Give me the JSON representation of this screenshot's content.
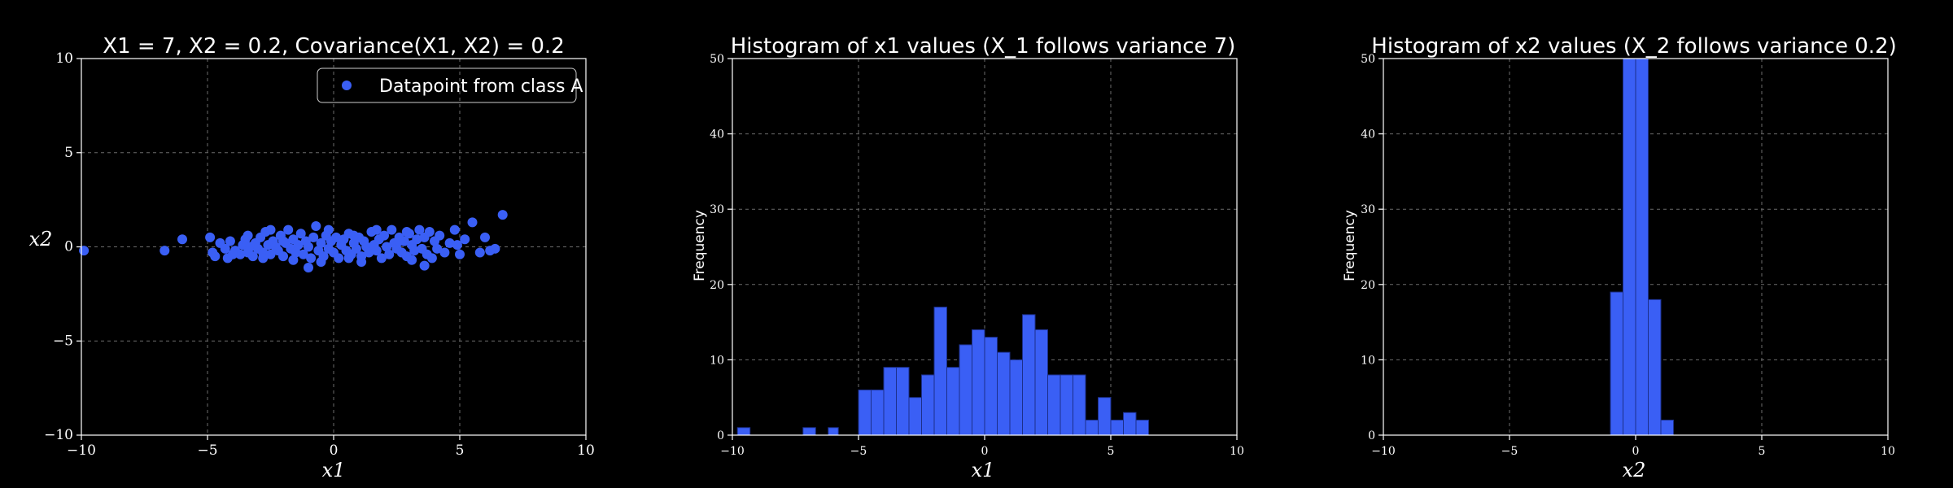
{
  "colors": {
    "background": "#000000",
    "accent": "#3a5ff5",
    "edge": "#1c2f8a",
    "grid": "#6b6b6b",
    "axis": "#ffffff"
  },
  "chart_data": [
    {
      "type": "scatter",
      "title": "X1 = 7, X2 = 0.2, Covariance(X1, X2) = 0.2",
      "xlabel": "x1",
      "ylabel": "x2",
      "xlim": [
        -10,
        10
      ],
      "ylim": [
        -10,
        10
      ],
      "xticks": [
        -10,
        -5,
        0,
        5,
        10
      ],
      "yticks": [
        -10,
        -5,
        0,
        5,
        10
      ],
      "grid": true,
      "legend": {
        "position": "top-right",
        "entries": [
          "Datapoint from class A"
        ]
      },
      "series": [
        {
          "name": "Datapoint from class A",
          "points": [
            [
              -9.9,
              -0.2
            ],
            [
              -6.7,
              -0.2
            ],
            [
              -6.0,
              0.4
            ],
            [
              -4.9,
              0.5
            ],
            [
              -4.8,
              -0.3
            ],
            [
              -4.7,
              -0.5
            ],
            [
              -4.5,
              0.2
            ],
            [
              -4.3,
              -0.1
            ],
            [
              -4.2,
              -0.6
            ],
            [
              -4.1,
              0.3
            ],
            [
              -3.9,
              -0.2
            ],
            [
              -3.7,
              -0.4
            ],
            [
              -3.6,
              0.1
            ],
            [
              -3.5,
              0.4
            ],
            [
              -3.4,
              -0.3
            ],
            [
              -3.3,
              0.0
            ],
            [
              -3.2,
              -0.5
            ],
            [
              -3.1,
              0.2
            ],
            [
              -3.0,
              -0.1
            ],
            [
              -2.9,
              0.5
            ],
            [
              -2.8,
              -0.3
            ],
            [
              -2.7,
              0.8
            ],
            [
              -2.6,
              0.1
            ],
            [
              -2.5,
              -0.4
            ],
            [
              -2.4,
              0.3
            ],
            [
              -2.3,
              0.0
            ],
            [
              -2.2,
              -0.2
            ],
            [
              -2.1,
              0.6
            ],
            [
              -2.0,
              -0.5
            ],
            [
              -1.9,
              0.2
            ],
            [
              -1.8,
              0.9
            ],
            [
              -1.7,
              -0.1
            ],
            [
              -1.6,
              0.4
            ],
            [
              -1.5,
              -0.3
            ],
            [
              -1.4,
              0.1
            ],
            [
              -1.3,
              0.7
            ],
            [
              -1.2,
              -0.4
            ],
            [
              -1.1,
              0.3
            ],
            [
              -1.0,
              0.0
            ],
            [
              -0.9,
              -0.6
            ],
            [
              -0.8,
              0.5
            ],
            [
              -0.7,
              1.1
            ],
            [
              -0.6,
              -0.2
            ],
            [
              -0.5,
              0.2
            ],
            [
              -0.4,
              -0.5
            ],
            [
              -0.3,
              0.6
            ],
            [
              -0.2,
              -0.1
            ],
            [
              -0.1,
              0.3
            ],
            [
              0.0,
              -0.3
            ],
            [
              0.1,
              0.5
            ],
            [
              0.2,
              -0.6
            ],
            [
              0.3,
              0.1
            ],
            [
              0.4,
              0.4
            ],
            [
              0.5,
              -0.2
            ],
            [
              0.6,
              0.7
            ],
            [
              0.7,
              -0.4
            ],
            [
              0.8,
              0.2
            ],
            [
              0.9,
              -0.1
            ],
            [
              1.0,
              0.5
            ],
            [
              1.1,
              -0.5
            ],
            [
              1.2,
              0.3
            ],
            [
              1.3,
              0.0
            ],
            [
              1.4,
              -0.3
            ],
            [
              1.5,
              0.8
            ],
            [
              1.6,
              0.1
            ],
            [
              1.7,
              -0.2
            ],
            [
              1.8,
              0.4
            ],
            [
              1.9,
              -0.6
            ],
            [
              2.0,
              0.6
            ],
            [
              2.1,
              0.0
            ],
            [
              2.2,
              -0.4
            ],
            [
              2.3,
              0.9
            ],
            [
              2.4,
              0.2
            ],
            [
              2.5,
              -0.1
            ],
            [
              2.6,
              0.5
            ],
            [
              2.7,
              -0.3
            ],
            [
              2.8,
              0.3
            ],
            [
              2.9,
              -0.5
            ],
            [
              3.0,
              0.7
            ],
            [
              3.1,
              0.1
            ],
            [
              3.2,
              -0.2
            ],
            [
              3.3,
              0.4
            ],
            [
              3.4,
              0.9
            ],
            [
              3.5,
              -0.1
            ],
            [
              3.6,
              0.5
            ],
            [
              3.7,
              -0.4
            ],
            [
              3.8,
              0.8
            ],
            [
              3.9,
              -0.6
            ],
            [
              4.0,
              0.3
            ],
            [
              4.1,
              -0.1
            ],
            [
              4.2,
              0.6
            ],
            [
              4.4,
              -0.3
            ],
            [
              4.6,
              0.2
            ],
            [
              4.8,
              0.9
            ],
            [
              5.0,
              -0.4
            ],
            [
              5.2,
              0.4
            ],
            [
              5.5,
              1.3
            ],
            [
              5.8,
              -0.3
            ],
            [
              6.0,
              0.5
            ],
            [
              6.2,
              -0.2
            ],
            [
              6.4,
              -0.1
            ],
            [
              6.7,
              1.7
            ],
            [
              -1.0,
              -1.1
            ],
            [
              3.6,
              -1.0
            ],
            [
              -2.5,
              0.9
            ],
            [
              1.7,
              0.9
            ],
            [
              -0.2,
              0.9
            ],
            [
              -4.0,
              -0.4
            ],
            [
              0.6,
              -0.6
            ],
            [
              2.9,
              0.8
            ],
            [
              -3.4,
              0.6
            ],
            [
              0.8,
              0.6
            ],
            [
              -1.6,
              -0.7
            ],
            [
              4.9,
              0.1
            ],
            [
              -2.8,
              -0.6
            ],
            [
              3.1,
              -0.7
            ],
            [
              -0.5,
              -0.8
            ],
            [
              2.6,
              0.3
            ],
            [
              1.1,
              -0.8
            ],
            [
              -2.0,
              0.3
            ]
          ]
        }
      ]
    },
    {
      "type": "bar",
      "title": "Histogram of x1 values (X_1 follows variance 7)",
      "xlabel": "x1",
      "ylabel": "Frequency",
      "xlim": [
        -10,
        10
      ],
      "ylim": [
        0,
        50
      ],
      "xticks": [
        -10,
        -5,
        0,
        5,
        10
      ],
      "yticks": [
        0,
        10,
        20,
        30,
        40,
        50
      ],
      "grid": true,
      "bins": [
        [
          -9.8,
          -9.3,
          1
        ],
        [
          -7.2,
          -6.7,
          1
        ],
        [
          -6.2,
          -5.8,
          1
        ],
        [
          -5.0,
          -4.5,
          6
        ],
        [
          -4.5,
          -4.0,
          6
        ],
        [
          -4.0,
          -3.5,
          9
        ],
        [
          -3.5,
          -3.0,
          9
        ],
        [
          -3.0,
          -2.5,
          5
        ],
        [
          -2.5,
          -2.0,
          8
        ],
        [
          -2.0,
          -1.5,
          17
        ],
        [
          -1.5,
          -1.0,
          9
        ],
        [
          -1.0,
          -0.5,
          12
        ],
        [
          -0.5,
          0.0,
          14
        ],
        [
          0.0,
          0.5,
          13
        ],
        [
          0.5,
          1.0,
          11
        ],
        [
          1.0,
          1.5,
          10
        ],
        [
          1.5,
          2.0,
          16
        ],
        [
          2.0,
          2.5,
          14
        ],
        [
          2.5,
          3.0,
          8
        ],
        [
          3.0,
          3.5,
          8
        ],
        [
          3.5,
          4.0,
          8
        ],
        [
          4.0,
          4.5,
          2
        ],
        [
          4.5,
          5.0,
          5
        ],
        [
          5.0,
          5.5,
          2
        ],
        [
          5.5,
          6.0,
          3
        ],
        [
          6.0,
          6.5,
          2
        ]
      ]
    },
    {
      "type": "bar",
      "title": "Histogram of x2 values (X_2 follows variance 0.2)",
      "xlabel": "x2",
      "ylabel": "Frequency",
      "xlim": [
        -10,
        10
      ],
      "ylim": [
        0,
        50
      ],
      "xticks": [
        -10,
        -5,
        0,
        5,
        10
      ],
      "yticks": [
        0,
        10,
        20,
        30,
        40,
        50
      ],
      "grid": true,
      "bins": [
        [
          -1.0,
          -0.5,
          19
        ],
        [
          -0.5,
          0.0,
          50
        ],
        [
          0.0,
          0.5,
          50
        ],
        [
          0.5,
          1.0,
          18
        ],
        [
          1.0,
          1.5,
          2
        ]
      ]
    }
  ]
}
